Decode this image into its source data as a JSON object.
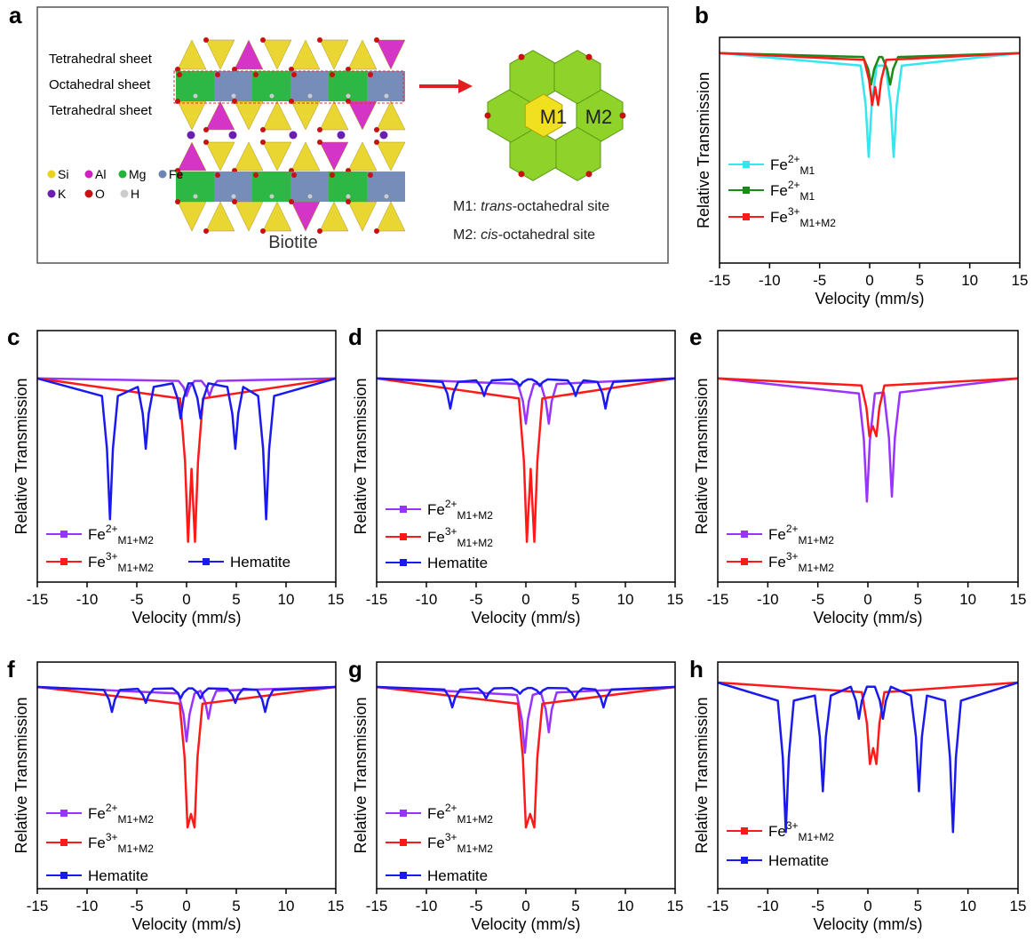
{
  "panel_a": {
    "label": "a",
    "sheets": [
      "Tetrahedral sheet",
      "Octahedral sheet",
      "Tetrahedral sheet"
    ],
    "atoms": [
      "Si",
      "Al",
      "Mg",
      "Fe",
      "K",
      "O",
      "H"
    ],
    "atom_colors": [
      "#e8d21c",
      "#d020c0",
      "#22b33a",
      "#6f86b5",
      "#6a1fb0",
      "#c81010",
      "#cccccc"
    ],
    "mineral": "Biotite",
    "sites": [
      "M1",
      "M2"
    ],
    "site_notes": [
      {
        "prefix": "M1: ",
        "italic": "trans",
        "suffix": "-octahedral site"
      },
      {
        "prefix": "M2: ",
        "italic": "cis",
        "suffix": "-octahedral site"
      }
    ]
  },
  "chart_data": [
    {
      "type": "line",
      "label": "b",
      "xlabel": "Velocity (mm/s)",
      "ylabel": "Relative Transmission",
      "xlim": [
        -15,
        15
      ],
      "xticks": [
        -15,
        -10,
        -5,
        0,
        5,
        10,
        15
      ],
      "ylim": [
        0,
        100
      ],
      "legend": "lower left",
      "series": [
        {
          "name": "Fe",
          "sup": "2+",
          "sub": "M1",
          "color": "#33e6f0",
          "x": [
            -15,
            -0.9,
            -0.4,
            -0.1,
            0.2,
            0.7,
            1.6,
            2.1,
            2.4,
            2.7,
            3.2,
            15
          ],
          "values": [
            93,
            87.5,
            70,
            47,
            70,
            87.5,
            87.5,
            70,
            47,
            70,
            87.5,
            93
          ]
        },
        {
          "name": "Fe",
          "sup": "2+",
          "sub": "M1",
          "color": "#1a8a1a",
          "x": [
            -15,
            -0.65,
            -0.15,
            0.15,
            0.45,
            0.95,
            1.25,
            1.75,
            2.05,
            2.35,
            2.85,
            15
          ],
          "values": [
            93,
            91.3,
            86,
            79,
            86,
            91.3,
            91.3,
            86,
            79,
            86,
            91.3,
            93
          ]
        },
        {
          "name": "Fe",
          "sup": "3+",
          "sub": "M1+M2",
          "color": "#ff1a1a",
          "x": [
            -15,
            -0.55,
            -0.05,
            0.25,
            0.55,
            0.85,
            1.15,
            1.65,
            15
          ],
          "values": [
            93,
            90,
            81,
            70,
            78,
            70,
            81,
            90,
            93
          ]
        }
      ]
    },
    {
      "type": "line",
      "label": "c",
      "xlabel": "Velocity (mm/s)",
      "ylabel": "Relative Transmission",
      "xlim": [
        -15,
        15
      ],
      "xticks": [
        -15,
        -10,
        -5,
        0,
        5,
        10,
        15
      ],
      "ylim": [
        0,
        100
      ],
      "legend": "lower left",
      "series": [
        {
          "name": "Fe",
          "sup": "2+",
          "sub": "M1+M2",
          "color": "#9933ff",
          "x": [
            -15,
            -0.8,
            -0.3,
            0,
            0.3,
            0.8,
            1.5,
            2.0,
            2.3,
            2.6,
            3.1,
            15
          ],
          "values": [
            81,
            80,
            77.5,
            74,
            77.5,
            80,
            80,
            77.5,
            74,
            77.5,
            80,
            81
          ]
        },
        {
          "name": "Fe",
          "sup": "3+",
          "sub": "M1+M2",
          "color": "#ff1a1a",
          "x": [
            -15,
            -0.65,
            -0.15,
            0.15,
            0.5,
            0.85,
            1.15,
            1.65,
            15
          ],
          "values": [
            81,
            73,
            48,
            16,
            45,
            16,
            48,
            73,
            81
          ]
        },
        {
          "name": "Hematite",
          "color": "#1a1aee",
          "x": [
            -15,
            -8.5,
            -8.0,
            -7.7,
            -7.4,
            -6.9,
            -4.9,
            -4.4,
            -4.1,
            -3.8,
            -3.3,
            -1.4,
            -0.9,
            -0.6,
            -0.3,
            0.2,
            0.6,
            1.1,
            1.4,
            1.7,
            2.2,
            4.1,
            4.6,
            4.9,
            5.2,
            5.7,
            7.2,
            7.7,
            8.0,
            8.3,
            8.8,
            15
          ],
          "values": [
            81,
            74,
            53,
            25,
            53,
            74,
            77.6,
            67,
            53,
            67,
            77.6,
            79,
            73,
            65,
            73,
            79,
            79,
            73,
            65,
            73,
            79,
            77.6,
            67,
            53,
            67,
            77.6,
            74,
            53,
            25,
            53,
            74,
            81
          ]
        }
      ]
    },
    {
      "type": "line",
      "label": "d",
      "xlabel": "Velocity (mm/s)",
      "ylabel": "Relative Transmission",
      "xlim": [
        -15,
        15
      ],
      "xticks": [
        -15,
        -10,
        -5,
        0,
        5,
        10,
        15
      ],
      "ylim": [
        0,
        100
      ],
      "legend": "lower left",
      "series": [
        {
          "name": "Fe",
          "sup": "2+",
          "sub": "M1+M2",
          "color": "#9933ff",
          "x": [
            -15,
            -0.8,
            -0.3,
            0,
            0.3,
            0.8,
            1.5,
            2.0,
            2.3,
            2.6,
            3.1,
            15
          ],
          "values": [
            81,
            78.8,
            72,
            63,
            72,
            78.8,
            78.8,
            72,
            63,
            72,
            78.8,
            81
          ]
        },
        {
          "name": "Fe",
          "sup": "3+",
          "sub": "M1+M2",
          "color": "#ff1a1a",
          "x": [
            -15,
            -0.7,
            -0.2,
            0.1,
            0.48,
            0.85,
            1.15,
            1.65,
            15
          ],
          "values": [
            81,
            73,
            48,
            16,
            45,
            16,
            48,
            73,
            81
          ]
        },
        {
          "name": "Hematite",
          "color": "#1a1aee",
          "x": [
            -15,
            -8.4,
            -7.9,
            -7.6,
            -7.3,
            -6.8,
            -5.0,
            -4.5,
            -4.2,
            -3.9,
            -3.4,
            -1.4,
            -0.9,
            -0.6,
            -0.3,
            0.2,
            0.6,
            1.1,
            1.4,
            1.7,
            2.2,
            4.2,
            4.7,
            5.0,
            5.3,
            5.8,
            7.2,
            7.7,
            8.0,
            8.3,
            8.8,
            15
          ],
          "values": [
            81,
            79.6,
            75,
            69,
            75,
            79.6,
            80.2,
            77.5,
            74,
            77.5,
            80.2,
            80.6,
            79.5,
            78,
            79.5,
            80.6,
            80.6,
            79.5,
            78,
            79.5,
            80.6,
            80.2,
            77.5,
            74,
            77.5,
            80.2,
            79.6,
            75,
            69,
            75,
            79.6,
            81
          ]
        }
      ]
    },
    {
      "type": "line",
      "label": "e",
      "xlabel": "Velocity (mm/s)",
      "ylabel": "Relative Transmission",
      "xlim": [
        -15,
        15
      ],
      "xticks": [
        -15,
        -10,
        -5,
        0,
        5,
        10,
        15
      ],
      "ylim": [
        0,
        100
      ],
      "legend": "lower left",
      "series": [
        {
          "name": "Fe",
          "sup": "2+",
          "sub": "M1+M2",
          "color": "#9933ff",
          "x": [
            -15,
            -0.9,
            -0.4,
            -0.1,
            0.2,
            0.7,
            1.6,
            2.1,
            2.4,
            2.7,
            3.2,
            15
          ],
          "values": [
            81,
            75,
            56.5,
            32,
            56.5,
            75,
            75.4,
            57.5,
            34,
            57.5,
            75.4,
            81
          ]
        },
        {
          "name": "Fe",
          "sup": "3+",
          "sub": "M1+M2",
          "color": "#ff1a1a",
          "x": [
            -15,
            -0.65,
            -0.15,
            0.15,
            0.5,
            0.85,
            1.15,
            1.65,
            15
          ],
          "values": [
            81,
            78.2,
            69.5,
            58,
            62,
            58,
            69.5,
            78.2,
            81
          ]
        }
      ]
    },
    {
      "type": "line",
      "label": "f",
      "xlabel": "Velocity (mm/s)",
      "ylabel": "Relative Transmission",
      "xlim": [
        -15,
        15
      ],
      "xticks": [
        -15,
        -10,
        -5,
        0,
        5,
        10,
        15
      ],
      "ylim": [
        0,
        100
      ],
      "legend": "lower left",
      "series": [
        {
          "name": "Fe",
          "sup": "2+",
          "sub": "M1+M2",
          "color": "#9933ff",
          "x": [
            -15,
            -0.8,
            -0.3,
            0,
            0.3,
            0.8,
            1.4,
            1.9,
            2.2,
            2.5,
            3.0,
            15
          ],
          "values": [
            89,
            86.1,
            77,
            65,
            77,
            86.1,
            87.3,
            82,
            75,
            82,
            87.3,
            89
          ]
        },
        {
          "name": "Fe",
          "sup": "3+",
          "sub": "M1+M2",
          "color": "#ff1a1a",
          "x": [
            -15,
            -0.7,
            -0.2,
            0.1,
            0.45,
            0.8,
            1.1,
            1.6,
            15
          ],
          "values": [
            89,
            81.6,
            58,
            27,
            33,
            27,
            58,
            81.6,
            89
          ]
        },
        {
          "name": "Hematite",
          "color": "#1a1aee",
          "x": [
            -15,
            -8.3,
            -7.8,
            -7.5,
            -7.2,
            -6.7,
            -4.9,
            -4.4,
            -4.1,
            -3.8,
            -3.3,
            -1.4,
            -0.9,
            -0.6,
            -0.3,
            0.2,
            0.6,
            1.1,
            1.4,
            1.7,
            2.2,
            4.1,
            4.6,
            4.9,
            5.2,
            5.7,
            7.1,
            7.6,
            7.9,
            8.2,
            8.7,
            15
          ],
          "values": [
            89,
            87.7,
            83.5,
            78,
            83.5,
            87.7,
            88.2,
            85.5,
            82,
            85.5,
            88.2,
            88.4,
            86.5,
            84,
            86.5,
            88.4,
            88.4,
            86.5,
            84,
            86.5,
            88.4,
            88.2,
            85.5,
            82,
            85.5,
            88.2,
            87.7,
            83.5,
            78,
            83.5,
            87.7,
            89
          ]
        }
      ]
    },
    {
      "type": "line",
      "label": "g",
      "xlabel": "Velocity (mm/s)",
      "ylabel": "Relative Transmission",
      "xlim": [
        -15,
        15
      ],
      "xticks": [
        -15,
        -10,
        -5,
        0,
        5,
        10,
        15
      ],
      "ylim": [
        0,
        100
      ],
      "legend": "lower left",
      "series": [
        {
          "name": "Fe",
          "sup": "2+",
          "sub": "M1+M2",
          "color": "#9933ff",
          "x": [
            -15,
            -0.9,
            -0.4,
            -0.1,
            0.2,
            0.7,
            1.5,
            2.0,
            2.3,
            2.6,
            3.1,
            15
          ],
          "values": [
            89,
            85.5,
            74.5,
            60,
            74.5,
            85.5,
            86.6,
            79,
            69,
            79,
            86.6,
            89
          ]
        },
        {
          "name": "Fe",
          "sup": "3+",
          "sub": "M1+M2",
          "color": "#ff1a1a",
          "x": [
            -15,
            -0.8,
            -0.3,
            0,
            0.43,
            0.85,
            1.15,
            1.65,
            15
          ],
          "values": [
            89,
            81.6,
            58,
            27,
            33,
            27,
            58,
            81.6,
            89
          ]
        },
        {
          "name": "Hematite",
          "color": "#1a1aee",
          "x": [
            -15,
            -8.2,
            -7.7,
            -7.4,
            -7.1,
            -6.6,
            -4.8,
            -4.3,
            -4.0,
            -3.7,
            -3.2,
            -1.4,
            -0.9,
            -0.6,
            -0.3,
            0.2,
            0.6,
            1.1,
            1.4,
            1.7,
            2.2,
            4.1,
            4.6,
            4.9,
            5.2,
            5.7,
            7.0,
            7.5,
            7.8,
            8.1,
            8.6,
            15
          ],
          "values": [
            89,
            87.9,
            84.5,
            80,
            84.5,
            87.9,
            88.4,
            86.5,
            84,
            86.5,
            88.4,
            88.6,
            87.5,
            86,
            87.5,
            88.6,
            88.6,
            87.5,
            86,
            87.5,
            88.6,
            88.4,
            86.5,
            84,
            86.5,
            88.4,
            87.9,
            84.5,
            80,
            84.5,
            87.9,
            89
          ]
        }
      ]
    },
    {
      "type": "line",
      "label": "h",
      "xlabel": "Velocity (mm/s)",
      "ylabel": "Relative Transmission",
      "xlim": [
        -15,
        15
      ],
      "xticks": [
        -15,
        -10,
        -5,
        0,
        5,
        10,
        15
      ],
      "ylim": [
        0,
        100
      ],
      "legend": "lower left",
      "series": [
        {
          "name": "Fe",
          "sup": "3+",
          "sub": "M1+M2",
          "color": "#ff1a1a",
          "x": [
            -15,
            -0.6,
            -0.1,
            0.2,
            0.53,
            0.85,
            1.15,
            1.65,
            15
          ],
          "values": [
            91,
            86.7,
            73,
            55,
            62,
            55,
            73,
            86.7,
            91
          ]
        },
        {
          "name": "Hematite",
          "color": "#1a1aee",
          "x": [
            -15,
            -9.0,
            -8.5,
            -8.2,
            -7.9,
            -7.4,
            -5.3,
            -4.8,
            -4.5,
            -4.2,
            -3.7,
            -1.7,
            -1.2,
            -0.9,
            -0.6,
            -0.1,
            0.7,
            1.2,
            1.5,
            1.8,
            2.3,
            4.3,
            4.8,
            5.1,
            5.4,
            5.9,
            7.7,
            8.2,
            8.5,
            8.8,
            9.3,
            15
          ],
          "values": [
            91,
            83,
            58,
            25,
            58,
            83,
            85.2,
            67,
            43,
            67,
            85.2,
            89.1,
            83,
            75,
            83,
            89.1,
            89.1,
            83,
            75,
            83,
            89.1,
            85.2,
            67,
            43,
            67,
            85.2,
            83,
            58,
            25,
            58,
            83,
            91
          ]
        }
      ]
    }
  ]
}
